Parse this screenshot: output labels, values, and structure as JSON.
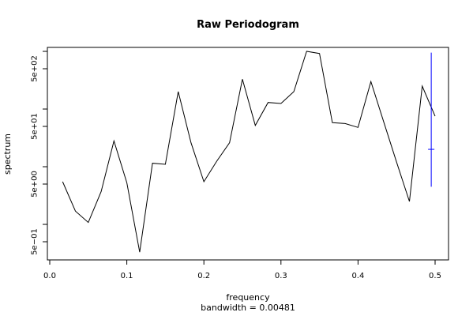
{
  "chart_data": {
    "type": "line",
    "title": "Raw Periodogram",
    "xlabel": "frequency",
    "xlabel_sub": "bandwidth = 0.00481",
    "ylabel": "spectrum",
    "y_scale": "log",
    "xlim": [
      0,
      0.5
    ],
    "ylim": [
      0.2,
      1800
    ],
    "x_ticks": [
      0.0,
      0.1,
      0.2,
      0.3,
      0.4,
      0.5
    ],
    "x_tick_labels": [
      "0.0",
      "0.1",
      "0.2",
      "0.3",
      "0.4",
      "0.5"
    ],
    "y_ticks": [
      0.5,
      5,
      50,
      500
    ],
    "y_tick_labels": [
      "5e−01",
      "5e+00",
      "5e+01",
      "5e+02"
    ],
    "grid": false,
    "legend": "none",
    "series": [
      {
        "x": [
          0.0167,
          0.0333,
          0.05,
          0.0667,
          0.0833,
          0.1,
          0.1167,
          0.1333,
          0.15,
          0.1667,
          0.1833,
          0.2,
          0.2167,
          0.2333,
          0.25,
          0.2667,
          0.2833,
          0.3,
          0.3167,
          0.3333,
          0.35,
          0.3667,
          0.3833,
          0.4,
          0.4167,
          0.4333,
          0.45,
          0.4667,
          0.4833,
          0.5
        ],
        "y": [
          5.5,
          1.7,
          1.08,
          3.7,
          28,
          5.3,
          0.33,
          11.5,
          11,
          200,
          26,
          5.5,
          12.5,
          26,
          330,
          52,
          130,
          125,
          200,
          1000,
          920,
          58,
          56,
          48,
          300,
          60,
          12,
          2.5,
          250,
          75
        ],
        "color": "#000000"
      }
    ],
    "ci_bar": {
      "x": 0.495,
      "center": 20,
      "lower": 4.5,
      "upper": 950,
      "color": "#0000ff"
    }
  }
}
